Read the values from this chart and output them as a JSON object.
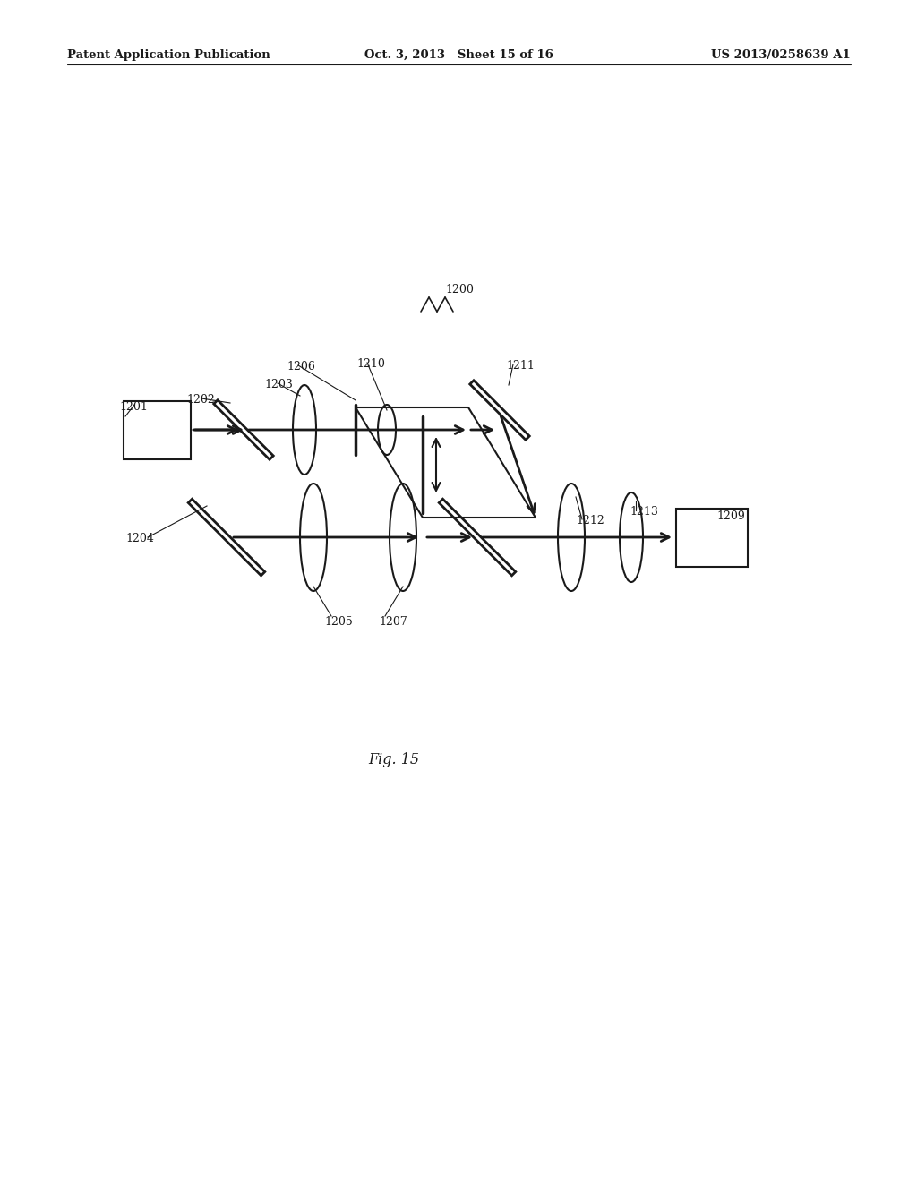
{
  "bg_color": "#ffffff",
  "line_color": "#1a1a1a",
  "text_color": "#1a1a1a",
  "header_left": "Patent Application Publication",
  "header_mid": "Oct. 3, 2013   Sheet 15 of 16",
  "header_right": "US 2013/0258639 A1",
  "fig_label": "Fig. 15"
}
